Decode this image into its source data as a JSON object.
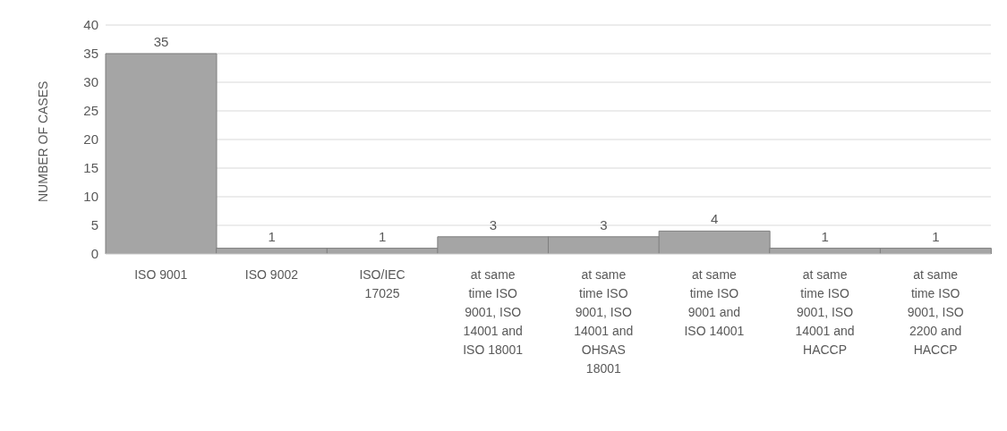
{
  "chart_data": {
    "type": "bar",
    "ylabel": "NUMBER OF CASES",
    "categories": [
      "ISO 9001",
      "ISO 9002",
      "ISO/IEC 17025",
      "at same time ISO 9001, ISO 14001 and ISO 18001",
      "at same time ISO 9001, ISO 14001 and OHSAS 18001",
      "at same time ISO 9001 and ISO 14001",
      "at same time ISO 9001, ISO 14001 and HACCP",
      "at same time ISO 9001, ISO 2200 and HACCP"
    ],
    "values": [
      35,
      1,
      1,
      3,
      3,
      4,
      1,
      1
    ],
    "color": "#a5a5a5",
    "ylim": [
      0,
      40
    ],
    "yticks": [
      0,
      5,
      10,
      15,
      20,
      25,
      30,
      35,
      40
    ],
    "grid": "y",
    "data_labels": true,
    "legend": false
  }
}
